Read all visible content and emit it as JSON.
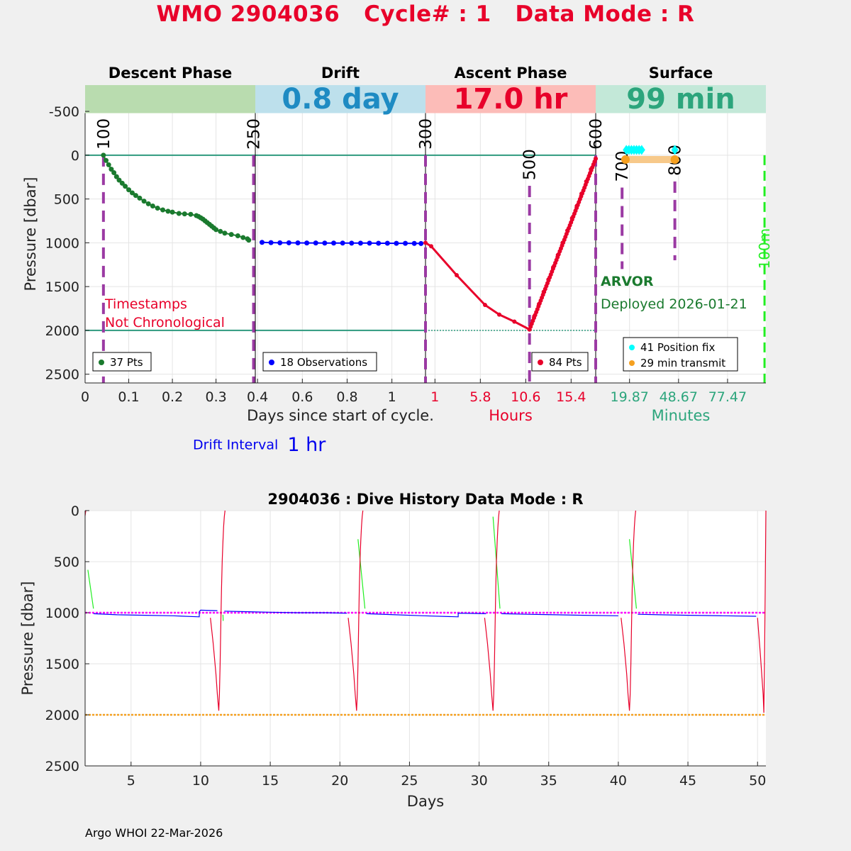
{
  "title": {
    "wmo": "WMO 2904036",
    "cycle": "Cycle# : 1",
    "mode": "Data Mode : R"
  },
  "colors": {
    "descent": "#1a7a2e",
    "drift": "#0000ff",
    "ascent": "#e8002a",
    "surface": "#2ca57c",
    "phase_line": "#9b3aa3",
    "fix": "#00ffff",
    "transmit": "#f5a020",
    "zero_line": "#2e9a7e",
    "green_dash": "#22ee22",
    "magenta": "#ff00ff",
    "orange_ref": "#f5a020"
  },
  "chart_data": [
    {
      "type": "line",
      "id": "cycle-profile",
      "ylabel": "Pressure [dbar]",
      "ylim": [
        2600,
        -800
      ],
      "yticks": [
        -500,
        0,
        500,
        1000,
        1500,
        2000,
        2500
      ],
      "grid": true,
      "phases": [
        {
          "name": "Descent Phase",
          "bar_color": "#b9dcaf",
          "duration_text": "",
          "xlabel": "Days since start of cycle.",
          "xlabel_color": "#222222",
          "xlim": [
            0,
            0.39
          ],
          "ticks": [
            0,
            0.1,
            0.2,
            0.3
          ],
          "tick_labels": [
            "0",
            "0.1",
            "0.2",
            "0.3"
          ],
          "tick_color": "#222222",
          "legend": "37 Pts",
          "legend_color": "#1a7a2e",
          "points": {
            "x": [
              0.042,
              0.048,
              0.054,
              0.06,
              0.066,
              0.072,
              0.078,
              0.085,
              0.092,
              0.1,
              0.108,
              0.116,
              0.125,
              0.135,
              0.145,
              0.155,
              0.166,
              0.178,
              0.19,
              0.2,
              0.215,
              0.228,
              0.242,
              0.255,
              0.26,
              0.265,
              0.27,
              0.275,
              0.28,
              0.285,
              0.29,
              0.295,
              0.3,
              0.31,
              0.32,
              0.335,
              0.35,
              0.362,
              0.372,
              0.375
            ],
            "y": [
              0,
              60,
              110,
              160,
              200,
              245,
              285,
              320,
              355,
              395,
              430,
              460,
              490,
              525,
              555,
              580,
              605,
              625,
              640,
              650,
              665,
              670,
              675,
              690,
              700,
              715,
              730,
              750,
              770,
              790,
              810,
              830,
              850,
              870,
              890,
              905,
              920,
              940,
              955,
              970
            ]
          }
        },
        {
          "name": "Drift",
          "bar_color": "#bde0ec",
          "duration_text": "0.8 day",
          "duration_color": "#1e8bc3",
          "xlabel": "",
          "xlim": [
            0.39,
            1.15
          ],
          "ticks": [
            0.4,
            0.6,
            0.8,
            1
          ],
          "tick_labels": [
            "0.4",
            "0.6",
            "0.8",
            "1"
          ],
          "tick_color": "#222222",
          "legend": "18 Observations",
          "legend_color": "#0000ff",
          "points": {
            "x": [
              0.42,
              0.46,
              0.5,
              0.54,
              0.58,
              0.62,
              0.66,
              0.7,
              0.74,
              0.78,
              0.82,
              0.86,
              0.9,
              0.94,
              0.98,
              1.02,
              1.06,
              1.1,
              1.13
            ],
            "y": [
              995,
              998,
              1000,
              1000,
              1001,
              1002,
              1002,
              1003,
              1003,
              1003,
              1004,
              1004,
              1004,
              1005,
              1005,
              1006,
              1006,
              1007,
              1008
            ]
          }
        },
        {
          "name": "Ascent Phase",
          "bar_color": "#fcbcb8",
          "duration_text": "17.0 hr",
          "duration_color": "#e8002a",
          "xlabel": "Hours",
          "xlabel_color": "#e8002a",
          "xlim": [
            0,
            18
          ],
          "ticks": [
            1,
            5.8,
            10.6,
            15.4
          ],
          "tick_labels": [
            "1",
            "5.8",
            "10.6",
            "15.4"
          ],
          "tick_color": "#e8002a",
          "legend": "84 Pts",
          "legend_color": "#e8002a",
          "points": {
            "x": [
              0,
              0.6,
              3.3,
              6.3,
              7.8,
              9.4,
              11.0,
              11.0,
              11.5,
              12.0,
              12.5,
              13.0,
              13.5,
              14.0,
              14.5,
              15.0,
              15.5,
              16.0,
              16.5,
              17.0,
              17.5,
              18.0
            ],
            "y": [
              1000,
              1040,
              1370,
              1710,
              1820,
              1900,
              1990,
              1990,
              1840,
              1700,
              1560,
              1420,
              1280,
              1140,
              1000,
              860,
              720,
              580,
              440,
              300,
              160,
              40
            ]
          }
        },
        {
          "name": "Surface",
          "bar_color": "#c3e8d8",
          "duration_text": "99 min",
          "duration_color": "#2ca57c",
          "xlabel": "Minutes",
          "xlabel_color": "#2ca57c",
          "xlim": [
            0,
            100
          ],
          "ticks": [
            19.87,
            48.67,
            77.47
          ],
          "tick_labels": [
            "19.87",
            "48.67",
            "77.47"
          ],
          "tick_color": "#2ca57c",
          "legend_items": [
            {
              "text": "41 Position fix",
              "color": "#00ffff"
            },
            {
              "text": "29 min transmit",
              "color": "#f5a020"
            }
          ],
          "fix_points": {
            "x": [
              18,
              19.5,
              21,
              22.5,
              24,
              25.5,
              27,
              46.5
            ],
            "y": [
              -60,
              -60,
              -60,
              -60,
              -60,
              -60,
              -60,
              -60
            ]
          },
          "transmit": {
            "x": [
              17.5,
              46.5
            ],
            "y": [
              50,
              50
            ]
          },
          "float_type": "ARVOR",
          "deployed": "Deployed 2026-01-21",
          "deployed_color": "#1a7a2e"
        }
      ],
      "reference_lines": [
        {
          "y": 0,
          "color": "#2e9a7e"
        },
        {
          "y": 2000,
          "color": "#2e9a7e"
        }
      ],
      "markers": [
        {
          "label": "100",
          "phase": 0,
          "x": 0.042,
          "from": 0,
          "to": 2600
        },
        {
          "label": "250",
          "phase": 0,
          "x": 0.386,
          "from": 0,
          "to": 2600
        },
        {
          "label": "300",
          "phase": 2,
          "x": 0.0,
          "from": 0,
          "to": 2600
        },
        {
          "label": "500",
          "phase": 2,
          "x": 11.0,
          "from": 350,
          "to": 2600
        },
        {
          "label": "600",
          "phase": 3,
          "x": 0.0,
          "from": 0,
          "to": 2600
        },
        {
          "label": "700",
          "phase": 3,
          "x": 15.5,
          "from": 370,
          "to": 1300
        },
        {
          "label": "800",
          "phase": 3,
          "x": 46.5,
          "from": 300,
          "to": 1200
        }
      ],
      "green_marker": {
        "label": "100m",
        "phase": 3,
        "x": 99.2
      },
      "warning": [
        "Timestamps",
        "Not Chronological"
      ],
      "drift_interval_label": "Drift Interval",
      "drift_interval_value": "1 hr"
    },
    {
      "type": "line",
      "id": "dive-history",
      "title": "2904036 : Dive History      Data Mode : R",
      "xlabel": "Days",
      "ylabel": "Pressure [dbar]",
      "xlim": [
        1.7,
        50.6
      ],
      "ylim": [
        2500,
        0
      ],
      "xticks": [
        5,
        10,
        15,
        20,
        25,
        30,
        35,
        40,
        45,
        50
      ],
      "yticks": [
        0,
        500,
        1000,
        1500,
        2000,
        2500
      ],
      "reference_lines": [
        {
          "y": 1000,
          "color": "#ff00ff"
        },
        {
          "y": 2000,
          "color": "#f5a020"
        }
      ],
      "series": [
        {
          "name": "descent",
          "color": "#22ee22",
          "segments": [
            {
              "x": [
                1.9,
                2.3
              ],
              "y": [
                580,
                960
              ]
            },
            {
              "x": [
                11.6,
                11.62
              ],
              "y": [
                1020,
                1080
              ]
            },
            {
              "x": [
                21.3,
                21.8
              ],
              "y": [
                280,
                960
              ]
            },
            {
              "x": [
                31.0,
                31.5
              ],
              "y": [
                60,
                960
              ]
            },
            {
              "x": [
                40.8,
                41.3
              ],
              "y": [
                280,
                960
              ]
            }
          ]
        },
        {
          "name": "drift",
          "color": "#0000ff",
          "segments": [
            {
              "x": [
                2.3,
                4.0,
                6.0,
                8.0,
                9.9,
                9.9,
                10.0,
                11.2
              ],
              "y": [
                1010,
                1020,
                1025,
                1030,
                1040,
                990,
                975,
                980
              ]
            },
            {
              "x": [
                11.7,
                13.5,
                15.0,
                17.0,
                19.0,
                20.5
              ],
              "y": [
                985,
                990,
                995,
                1000,
                1000,
                1005
              ]
            },
            {
              "x": [
                21.9,
                24.0,
                26.0,
                28.5,
                28.5,
                30.5
              ],
              "y": [
                1010,
                1020,
                1030,
                1040,
                1005,
                1010
              ]
            },
            {
              "x": [
                31.6,
                33.5,
                35.5,
                37.5,
                40.0
              ],
              "y": [
                1010,
                1015,
                1020,
                1025,
                1030
              ]
            },
            {
              "x": [
                41.4,
                43.0,
                45.0,
                47.5,
                49.9
              ],
              "y": [
                1015,
                1020,
                1025,
                1030,
                1035
              ]
            }
          ]
        },
        {
          "name": "ascent",
          "color": "#e8002a",
          "segments": [
            {
              "x": [
                1.7,
                1.75
              ],
              "y": [
                50,
                0
              ]
            },
            {
              "x": [
                10.7,
                10.9,
                11.1,
                11.2,
                11.3,
                11.35,
                11.4,
                11.45,
                11.5,
                11.55,
                11.6,
                11.65,
                11.7,
                11.75
              ],
              "y": [
                1050,
                1300,
                1600,
                1800,
                1960,
                1800,
                1500,
                1100,
                750,
                480,
                300,
                160,
                60,
                0
              ]
            },
            {
              "x": [
                20.6,
                20.8,
                21.0,
                21.1,
                21.2,
                21.25,
                21.3,
                21.35,
                21.4,
                21.45,
                21.5,
                21.55,
                21.6,
                21.65
              ],
              "y": [
                1050,
                1300,
                1600,
                1800,
                1960,
                1800,
                1500,
                1100,
                750,
                480,
                300,
                160,
                60,
                0
              ]
            },
            {
              "x": [
                30.4,
                30.6,
                30.8,
                30.9,
                31.0,
                31.05,
                31.1,
                31.15,
                31.2,
                31.25,
                31.3,
                31.35,
                31.4,
                31.45
              ],
              "y": [
                1050,
                1300,
                1600,
                1800,
                1960,
                1800,
                1500,
                1100,
                750,
                480,
                300,
                160,
                60,
                0
              ]
            },
            {
              "x": [
                40.2,
                40.4,
                40.6,
                40.7,
                40.8,
                40.85,
                40.9,
                40.95,
                41.0,
                41.05,
                41.1,
                41.15,
                41.2,
                41.25
              ],
              "y": [
                1050,
                1300,
                1600,
                1800,
                1960,
                1800,
                1500,
                1100,
                750,
                480,
                300,
                160,
                60,
                0
              ]
            },
            {
              "x": [
                50.0,
                50.2,
                50.4,
                50.45,
                50.5,
                50.55,
                50.6
              ],
              "y": [
                1050,
                1400,
                1800,
                1980,
                1500,
                800,
                0
              ]
            }
          ]
        }
      ]
    }
  ],
  "footer": "Argo WHOI 22-Mar-2026"
}
